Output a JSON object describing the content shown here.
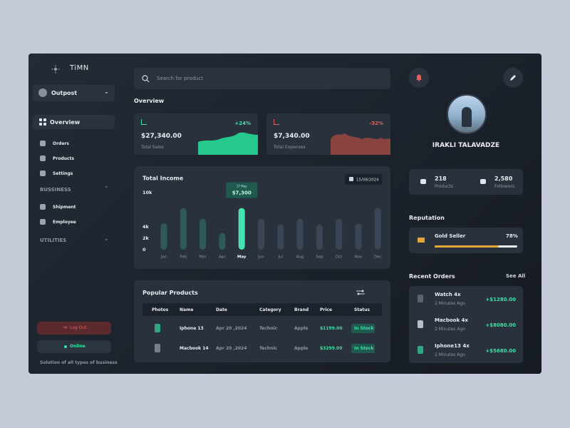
{
  "brand": "TiMN",
  "workspace": "Outpost",
  "nav": {
    "items": [
      "Overview",
      "Orders",
      "Products",
      "Settings"
    ],
    "business": {
      "title": "BUSSINESS",
      "items": [
        "Shipment",
        "Employee"
      ]
    },
    "utilities": "UTILITIES"
  },
  "logout": "Log Out",
  "status": "Online",
  "tagline": "Solution of all types of business",
  "search_placeholder": "Search for product",
  "overview": {
    "title": "Overview",
    "cards": [
      {
        "amount": "$27,340.00",
        "label": "Total Sales",
        "change": "+24%"
      },
      {
        "amount": "$7,340.00",
        "label": "Total Expenses",
        "change": "-32%"
      }
    ]
  },
  "chart_data": {
    "type": "bar",
    "title": "Total Income",
    "date": "15/08/2024",
    "categories": [
      "Jan",
      "Feb",
      "Mar",
      "Apr",
      "May",
      "Jun",
      "Jul",
      "Aug",
      "Sep",
      "Oct",
      "Nov",
      "Dec"
    ],
    "values": [
      4600,
      7300,
      5400,
      2900,
      7300,
      5400,
      4400,
      5400,
      4400,
      5400,
      4600,
      7300
    ],
    "value_labels": [
      null,
      null,
      null,
      null,
      "$7,300",
      null,
      null,
      null,
      null,
      null,
      null,
      null
    ],
    "tooltip_date": "17 May",
    "colors": [
      "#2e5a57",
      "#2e5a57",
      "#2e5a57",
      "#2e5a57",
      "#46e3b0",
      "#3a4656",
      "#3a4656",
      "#3a4656",
      "#3a4656",
      "#3a4656",
      "#3a4656",
      "#3a4656"
    ],
    "ylim": [
      0,
      10000
    ],
    "yticks": [
      0,
      {
        "value": 2000,
        "label": "2k"
      },
      {
        "value": 4000,
        "label": "4k"
      },
      {
        "value": 10000,
        "label": "10k"
      }
    ]
  },
  "popular_products": {
    "title": "Popular Products",
    "columns": [
      "Photos",
      "Name",
      "Date",
      "Category",
      "Brand",
      "Price",
      "Status"
    ],
    "rows": [
      [
        "Iphone 13",
        "Apr 20 ,2024",
        "Technic",
        "Apple",
        "$1199.00",
        "In Stock"
      ],
      [
        "Macbook 14",
        "Apr 20 ,2024",
        "Technic",
        "Apple",
        "$3299.00",
        "In Stock"
      ]
    ]
  },
  "profile": {
    "name": "IRAKLI TALAVADZE",
    "stats": [
      {
        "value": "218",
        "label": "Products"
      },
      {
        "value": "2,580",
        "label": "Followers"
      }
    ]
  },
  "reputation": {
    "title": "Reputation",
    "badge": "Gold Seller",
    "percent": "78%"
  },
  "recent_orders": {
    "title": "Recent Orders",
    "link": "See All",
    "items": [
      {
        "name": "Watch 4x",
        "time": "2 Minutes Ago",
        "amount": "+$1280.00"
      },
      {
        "name": "Macbook 4x",
        "time": "2 Minutes Ago",
        "amount": "+$8080.00"
      },
      {
        "name": "Iphone13 4x",
        "time": "2 Minutes Ago",
        "amount": "+$5680.00"
      }
    ]
  }
}
